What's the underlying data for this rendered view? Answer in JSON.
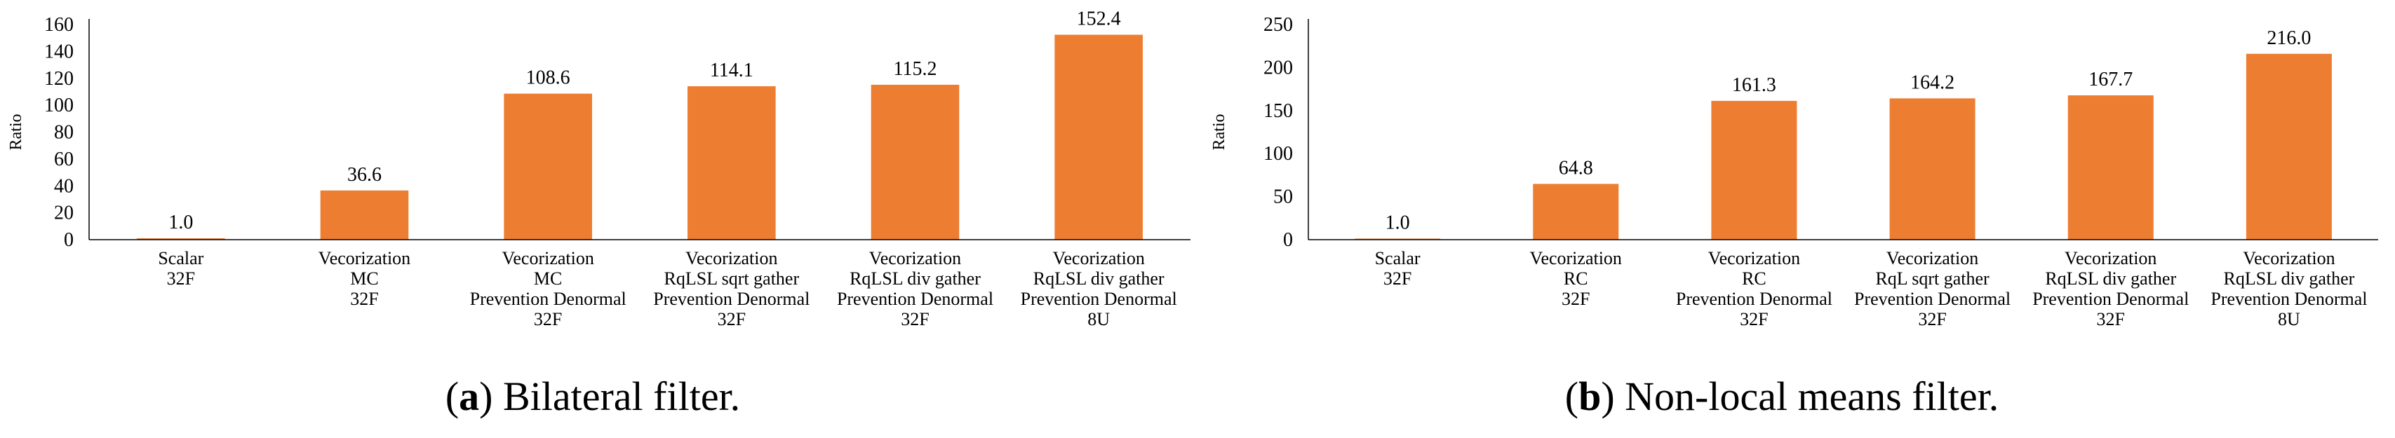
{
  "bar_color": "#ED7D31",
  "chart_data": [
    {
      "type": "bar",
      "caption_letter": "a",
      "caption_text": "Bilateral filter.",
      "ylabel": "Ratio",
      "ylim": [
        0,
        160
      ],
      "yticks": [
        0,
        20,
        40,
        60,
        80,
        100,
        120,
        140,
        160
      ],
      "categories": [
        [
          "Scalar",
          "32F"
        ],
        [
          "Vecorization",
          "MC",
          "32F"
        ],
        [
          "Vecorization",
          "MC",
          "Prevention Denormal",
          "32F"
        ],
        [
          "Vecorization",
          "RqLSL sqrt gather",
          "Prevention Denormal",
          "32F"
        ],
        [
          "Vecorization",
          "RqLSL div gather",
          "Prevention Denormal",
          "32F"
        ],
        [
          "Vecorization",
          "RqLSL div gather",
          "Prevention Denormal",
          "8U"
        ]
      ],
      "values": [
        1.0,
        36.6,
        108.6,
        114.1,
        115.2,
        152.4
      ],
      "value_labels": [
        "1.0",
        "36.6",
        "108.6",
        "114.1",
        "115.2",
        "152.4"
      ]
    },
    {
      "type": "bar",
      "caption_letter": "b",
      "caption_text": "Non-local means filter.",
      "ylabel": "Ratio",
      "ylim": [
        0,
        250
      ],
      "yticks": [
        0,
        50,
        100,
        150,
        200,
        250
      ],
      "categories": [
        [
          "Scalar",
          "32F"
        ],
        [
          "Vecorization",
          "RC",
          "32F"
        ],
        [
          "Vecorization",
          "RC",
          "Prevention Denormal",
          "32F"
        ],
        [
          "Vecorization",
          "RqL sqrt gather",
          "Prevention Denormal",
          "32F"
        ],
        [
          "Vecorization",
          "RqLSL div gather",
          "Prevention Denormal",
          "32F"
        ],
        [
          "Vecorization",
          "RqLSL div gather",
          "Prevention Denormal",
          "8U"
        ]
      ],
      "values": [
        1.0,
        64.8,
        161.3,
        164.2,
        167.7,
        216.0
      ],
      "value_labels": [
        "1.0",
        "64.8",
        "161.3",
        "164.2",
        "167.7",
        "216.0"
      ]
    }
  ]
}
